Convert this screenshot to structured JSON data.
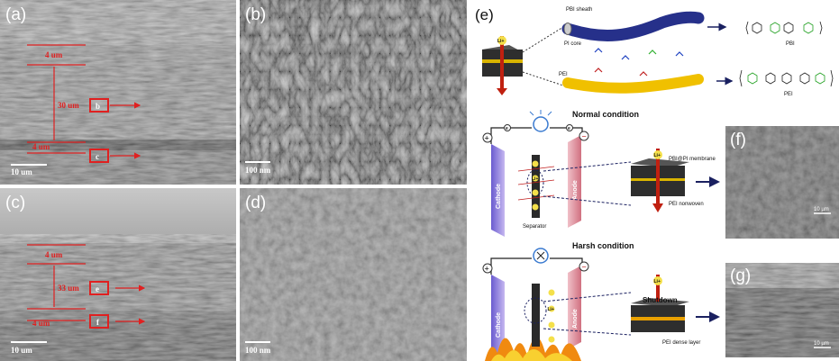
{
  "panels": {
    "a": {
      "label": "(a)",
      "dims": [
        "4 um",
        "30 um",
        "4 um"
      ],
      "markers": [
        "b",
        "c"
      ],
      "scale_bar": "10 um"
    },
    "b": {
      "label": "(b)",
      "scale_bar": "100 nm"
    },
    "c": {
      "label": "(c)",
      "dims": [
        "4 um",
        "33 um",
        "4 um"
      ],
      "markers": [
        "e",
        "f"
      ],
      "scale_bar": "10 um"
    },
    "d": {
      "label": "(d)",
      "scale_bar": "100 nm"
    },
    "e": {
      "label": "(e)",
      "fiber_labels": [
        "PBI sheath",
        "PI core",
        "PEI"
      ],
      "ion": "Li+",
      "structures": [
        "PBI",
        "PEI"
      ],
      "normal": {
        "title": "Normal condition",
        "cathode": "Cathode",
        "anode": "Anode",
        "separator": "Separator",
        "membrane": "PBI@PI membrane",
        "nonwoven": "PEI nonwoven",
        "electron": "e"
      },
      "harsh": {
        "title": "Harsh condition",
        "shutdown": "Shutdown",
        "layer": "PEI dense layer"
      },
      "plus": "+",
      "minus": "−"
    },
    "f": {
      "label": "(f)",
      "scale_bar": "10 µm"
    },
    "g": {
      "label": "(g)",
      "scale_bar": "10 µm"
    }
  }
}
